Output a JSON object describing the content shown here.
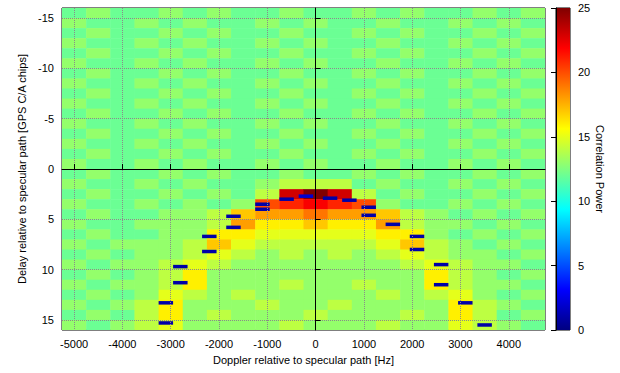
{
  "chart_data": {
    "type": "heatmap",
    "x_label": "Doppler relative to specular path [Hz]",
    "y_label": "Delay relative to specular path [GPS C/A chips]",
    "x": [
      -5000,
      -4500,
      -4000,
      -3500,
      -3000,
      -2500,
      -2000,
      -1500,
      -1000,
      -500,
      0,
      500,
      1000,
      1500,
      2000,
      2500,
      3000,
      3500,
      4000,
      4500
    ],
    "y": [
      -15.5,
      -14.5,
      -13.5,
      -12.5,
      -11.5,
      -10.5,
      -9.5,
      -8.5,
      -7.5,
      -6.5,
      -5.5,
      -4.5,
      -3.5,
      -2.5,
      -1.5,
      -0.5,
      0.5,
      1.5,
      2.5,
      3.5,
      4.5,
      5.5,
      6.5,
      7.5,
      8.5,
      9.5,
      10.5,
      11.5,
      12.5,
      13.5,
      14.5,
      15.5
    ],
    "cells": [
      [
        12,
        13,
        12,
        12,
        13,
        12,
        13,
        12,
        12,
        13,
        12,
        12,
        13,
        12,
        13,
        12,
        12,
        13,
        12,
        13
      ],
      [
        13,
        12,
        12,
        13,
        12,
        13,
        12,
        12,
        13,
        12,
        13,
        12,
        12,
        13,
        12,
        12,
        13,
        12,
        13,
        12
      ],
      [
        12,
        13,
        12,
        12,
        13,
        12,
        13,
        12,
        12,
        13,
        12,
        12,
        13,
        12,
        13,
        12,
        12,
        13,
        12,
        13
      ],
      [
        13,
        12,
        12,
        13,
        12,
        13,
        12,
        12,
        13,
        12,
        13,
        12,
        12,
        13,
        12,
        12,
        13,
        12,
        13,
        12
      ],
      [
        12,
        13,
        12,
        12,
        13,
        12,
        13,
        12,
        12,
        13,
        12,
        12,
        13,
        12,
        13,
        12,
        12,
        13,
        12,
        13
      ],
      [
        13,
        12,
        12,
        13,
        12,
        13,
        12,
        12,
        13,
        12,
        13,
        12,
        12,
        13,
        12,
        12,
        13,
        12,
        13,
        12
      ],
      [
        12,
        13,
        12,
        12,
        13,
        12,
        13,
        12,
        12,
        13,
        12,
        12,
        13,
        12,
        13,
        12,
        12,
        13,
        12,
        13
      ],
      [
        13,
        12,
        12,
        13,
        12,
        13,
        12,
        12,
        13,
        12,
        13,
        12,
        12,
        13,
        12,
        12,
        13,
        12,
        13,
        12
      ],
      [
        12,
        13,
        12,
        12,
        13,
        12,
        13,
        12,
        12,
        13,
        12,
        12,
        13,
        12,
        13,
        12,
        12,
        13,
        12,
        13
      ],
      [
        13,
        12,
        12,
        13,
        12,
        13,
        12,
        12,
        13,
        12,
        13,
        12,
        12,
        13,
        12,
        12,
        13,
        12,
        13,
        12
      ],
      [
        12,
        13,
        12,
        12,
        13,
        12,
        13,
        12,
        12,
        13,
        12,
        12,
        13,
        12,
        13,
        12,
        12,
        13,
        12,
        13
      ],
      [
        13,
        12,
        12,
        13,
        12,
        13,
        12,
        12,
        13,
        12,
        13,
        12,
        12,
        13,
        12,
        12,
        13,
        12,
        13,
        12
      ],
      [
        12,
        13,
        12,
        12,
        13,
        12,
        13,
        12,
        12,
        13,
        12,
        12,
        13,
        12,
        13,
        12,
        12,
        13,
        12,
        13
      ],
      [
        13,
        12,
        12,
        13,
        12,
        13,
        12,
        12,
        13,
        12,
        13,
        12,
        12,
        13,
        12,
        12,
        13,
        12,
        13,
        12
      ],
      [
        12,
        13,
        12,
        12,
        13,
        12,
        13,
        12,
        12,
        13,
        12,
        12,
        13,
        12,
        13,
        12,
        12,
        13,
        12,
        13
      ],
      [
        13,
        12,
        12,
        13,
        12,
        13,
        12,
        12,
        13,
        12,
        13,
        12,
        12,
        13,
        12,
        12,
        13,
        12,
        13,
        12
      ],
      [
        12,
        13,
        12,
        12,
        13,
        12,
        13,
        12,
        12,
        13,
        12,
        12,
        13,
        12,
        13,
        12,
        12,
        13,
        12,
        13
      ],
      [
        13,
        12,
        12,
        13,
        12,
        13,
        12,
        12,
        13,
        14,
        14,
        14,
        12,
        13,
        12,
        12,
        13,
        12,
        13,
        12
      ],
      [
        12,
        13,
        12,
        12,
        13,
        12,
        13,
        12,
        14,
        23,
        25,
        23,
        14,
        12,
        13,
        12,
        12,
        13,
        12,
        13
      ],
      [
        13,
        12,
        12,
        13,
        12,
        13,
        12,
        13,
        20,
        21,
        22,
        21,
        20,
        13,
        12,
        12,
        13,
        12,
        13,
        12
      ],
      [
        12,
        13,
        12,
        12,
        13,
        13,
        14,
        17,
        18,
        18,
        19,
        18,
        18,
        17,
        14,
        13,
        12,
        13,
        12,
        13
      ],
      [
        13,
        12,
        12,
        13,
        13,
        13,
        14,
        18,
        16,
        16,
        17,
        16,
        16,
        18,
        14,
        13,
        13,
        12,
        13,
        12
      ],
      [
        12,
        13,
        12,
        12,
        13,
        13,
        16,
        16,
        15,
        15,
        15,
        15,
        15,
        16,
        16,
        13,
        12,
        13,
        12,
        13
      ],
      [
        13,
        12,
        13,
        13,
        13,
        14,
        17,
        15,
        14,
        14,
        14,
        14,
        14,
        15,
        17,
        14,
        13,
        12,
        13,
        12
      ],
      [
        12,
        13,
        12,
        13,
        13,
        14,
        15,
        14,
        13,
        14,
        13,
        14,
        13,
        14,
        15,
        14,
        13,
        13,
        12,
        13
      ],
      [
        13,
        12,
        13,
        13,
        14,
        15,
        14,
        13,
        13,
        13,
        13,
        13,
        13,
        13,
        14,
        15,
        14,
        13,
        13,
        12
      ],
      [
        12,
        13,
        12,
        13,
        14,
        16,
        13,
        13,
        13,
        13,
        13,
        13,
        13,
        13,
        13,
        16,
        14,
        13,
        12,
        13
      ],
      [
        13,
        12,
        13,
        13,
        14,
        16,
        13,
        13,
        13,
        14,
        13,
        13,
        14,
        13,
        13,
        16,
        14,
        13,
        13,
        12
      ],
      [
        12,
        13,
        12,
        13,
        15,
        14,
        13,
        14,
        13,
        13,
        13,
        13,
        13,
        14,
        13,
        14,
        15,
        13,
        12,
        13
      ],
      [
        13,
        12,
        13,
        14,
        16,
        13,
        13,
        13,
        14,
        13,
        13,
        14,
        13,
        13,
        13,
        13,
        16,
        14,
        13,
        12
      ],
      [
        12,
        13,
        12,
        14,
        16,
        13,
        14,
        13,
        13,
        13,
        14,
        13,
        13,
        13,
        14,
        13,
        16,
        14,
        12,
        13
      ],
      [
        13,
        12,
        13,
        14,
        15,
        13,
        13,
        13,
        13,
        14,
        13,
        13,
        13,
        14,
        13,
        13,
        15,
        14,
        13,
        12
      ]
    ],
    "dark_cells": [
      [
        -3100,
        15.3,
        1
      ],
      [
        -3100,
        13.3,
        1
      ],
      [
        -2800,
        11.3,
        1
      ],
      [
        -2800,
        9.7,
        1
      ],
      [
        -2200,
        8.2,
        1
      ],
      [
        -2200,
        6.7,
        1
      ],
      [
        -1700,
        5.8,
        1
      ],
      [
        -1700,
        4.7,
        1
      ],
      [
        -1100,
        4.0,
        1
      ],
      [
        -1100,
        3.5,
        1
      ],
      [
        -600,
        3.0,
        1
      ],
      [
        -200,
        2.7,
        2
      ],
      [
        300,
        2.9,
        1
      ],
      [
        700,
        3.1,
        1
      ],
      [
        1100,
        4.6,
        1
      ],
      [
        1100,
        3.8,
        1
      ],
      [
        1600,
        5.5,
        1
      ],
      [
        2100,
        6.7,
        1
      ],
      [
        2100,
        8.0,
        1
      ],
      [
        2600,
        9.5,
        1
      ],
      [
        2600,
        11.5,
        1
      ],
      [
        3100,
        13.3,
        1
      ],
      [
        3500,
        15.5,
        1
      ]
    ],
    "xlim": [
      -5250,
      4750
    ],
    "xticks": [
      -5000,
      -4000,
      -3000,
      -2000,
      -1000,
      0,
      1000,
      2000,
      3000,
      4000
    ],
    "ylim": [
      -16,
      16
    ],
    "yticks": [
      -15,
      -10,
      -5,
      0,
      5,
      10,
      15
    ],
    "colorbar": {
      "label": "Correlation Power",
      "range": [
        0,
        25
      ],
      "ticks": [
        0,
        5,
        10,
        15,
        20,
        25
      ]
    },
    "grid": true
  }
}
